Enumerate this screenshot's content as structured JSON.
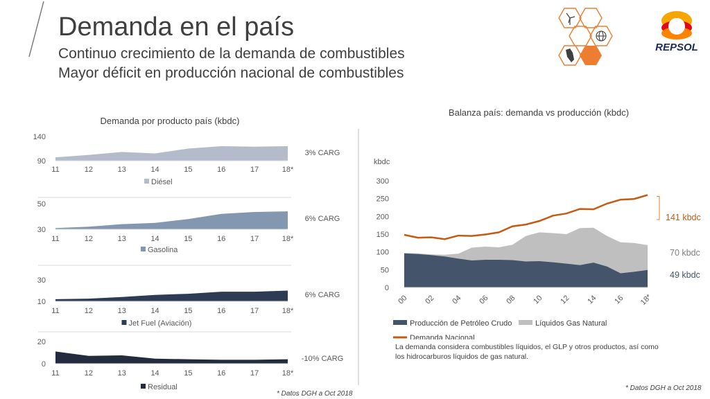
{
  "header": {
    "title": "Demanda en el país",
    "subtitle_1": "Continuo crecimiento de la demanda de combustibles",
    "subtitle_2": "Mayor déficit en producción nacional de combustibles",
    "logo_text": "REPSOL"
  },
  "colors": {
    "diesel": "#b4bccb",
    "gasolina": "#8497b0",
    "jet": "#2d3b55",
    "residual": "#232c3f",
    "crudo": "#44546a",
    "lgn": "#bfbfbf",
    "demanda": "#c55a11",
    "accent": "#ed7d31"
  },
  "chart_data": [
    {
      "type": "area",
      "title": "Demanda por producto país (kbdc)",
      "categories": [
        "11",
        "12",
        "13",
        "14",
        "15",
        "16",
        "17",
        "18*"
      ],
      "series": [
        {
          "name": "Diésel",
          "values": [
            97,
            102,
            108,
            105,
            115,
            120,
            119,
            120
          ]
        }
      ],
      "ylim": [
        90,
        140
      ],
      "yticks": [
        "140",
        "90"
      ],
      "cagr_label": "3% CARG"
    },
    {
      "type": "area",
      "categories": [
        "11",
        "12",
        "13",
        "14",
        "15",
        "16",
        "17",
        "18*"
      ],
      "series": [
        {
          "name": "Gasolina",
          "values": [
            31,
            32,
            34,
            35,
            38,
            42,
            43.5,
            44
          ]
        }
      ],
      "ylim": [
        30,
        50
      ],
      "yticks": [
        "50",
        "30"
      ],
      "cagr_label": "6% CARG"
    },
    {
      "type": "area",
      "categories": [
        "11",
        "12",
        "13",
        "14",
        "15",
        "16",
        "17",
        "18*"
      ],
      "series": [
        {
          "name": "Jet Fuel (Aviación)",
          "values": [
            12,
            12.5,
            14,
            16,
            17,
            19,
            19,
            20
          ]
        }
      ],
      "ylim": [
        10,
        30
      ],
      "yticks": [
        "30",
        "10"
      ],
      "cagr_label": "6% CARG"
    },
    {
      "type": "area",
      "categories": [
        "11",
        "12",
        "13",
        "14",
        "15",
        "16",
        "17",
        "18*"
      ],
      "series": [
        {
          "name": "Residual",
          "values": [
            11,
            7,
            7.5,
            4.5,
            4,
            3.5,
            3.5,
            4
          ]
        }
      ],
      "ylim": [
        0,
        20
      ],
      "yticks": [
        "20",
        "0"
      ],
      "cagr_label": "-10% CARG"
    },
    {
      "type": "area",
      "title": "Balanza país: demanda vs producción (kbdc)",
      "ylabel": "kbdc",
      "x": [
        "00",
        "01",
        "02",
        "03",
        "04",
        "05",
        "06",
        "07",
        "08",
        "09",
        "10",
        "11",
        "12",
        "13",
        "14",
        "15",
        "16",
        "17",
        "18*"
      ],
      "xticks": [
        "00",
        "02",
        "04",
        "06",
        "08",
        "10",
        "12",
        "14",
        "16",
        "18*"
      ],
      "yticks": [
        0,
        50,
        100,
        150,
        200,
        250,
        300
      ],
      "ylim": [
        0,
        300
      ],
      "series": [
        {
          "name": "Producción de Petróleo Crudo",
          "values": [
            96,
            94,
            91,
            87,
            81,
            76,
            78,
            78,
            77,
            73,
            74,
            71,
            67,
            63,
            70,
            59,
            40,
            44,
            49
          ]
        },
        {
          "name": "Líquidos Gas Natural",
          "values": [
            97,
            96,
            93,
            92,
            95,
            112,
            115,
            113,
            120,
            145,
            155,
            153,
            150,
            167,
            168,
            145,
            127,
            125,
            119
          ]
        },
        {
          "name": "Demanda Nacional",
          "values": [
            148,
            140,
            141,
            136,
            146,
            145,
            149,
            155,
            172,
            177,
            187,
            202,
            208,
            221,
            220,
            236,
            247,
            249,
            260
          ]
        }
      ],
      "bracket_labels": [
        "141 kbdc",
        "70 kbdc",
        "49 kbdc"
      ],
      "note": "La demanda considera combustibles líquidos, el GLP y otros productos, así como los hidrocarburos líquidos de gas natural."
    }
  ],
  "source_notes": {
    "left": "* Datos DGH a Oct 2018",
    "right": "* Datos DGH a Oct 2018"
  }
}
